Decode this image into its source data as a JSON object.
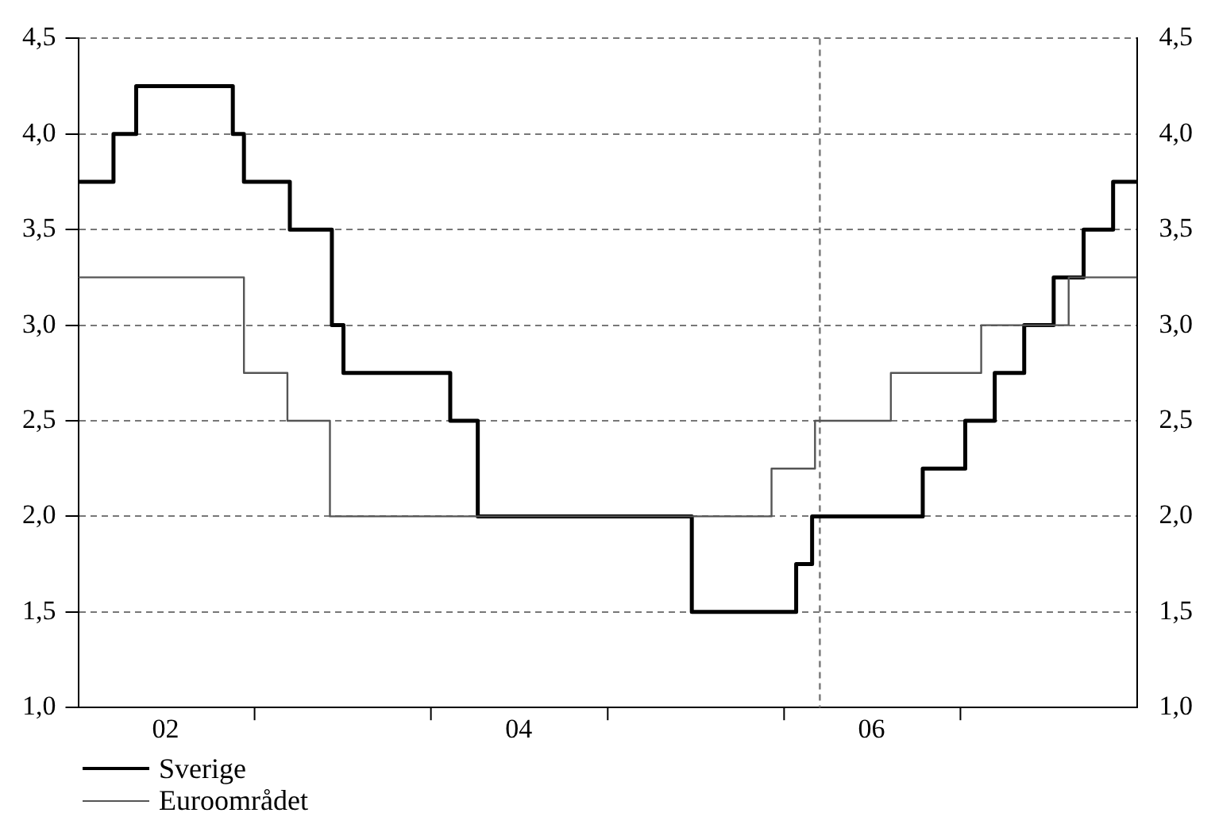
{
  "chart_data": {
    "type": "step",
    "series": [
      {
        "name": "Sverige",
        "color": "#000000",
        "x": [
          "2002-01-01",
          "2002-03-15",
          "2002-05-01",
          "2002-11-17",
          "2002-12-10",
          "2003-03-15",
          "2003-06-10",
          "2003-07-04",
          "2004-02-10",
          "2004-04-07",
          "2005-06-24",
          "2006-01-26",
          "2006-02-28",
          "2006-10-15",
          "2007-01-11",
          "2007-03-13",
          "2007-05-13",
          "2007-07-13",
          "2007-09-13",
          "2007-11-13",
          "2008-01-01"
        ],
        "values": [
          3.75,
          4.0,
          4.25,
          4.0,
          3.75,
          3.5,
          3.0,
          2.75,
          2.5,
          2.0,
          1.5,
          1.75,
          2.0,
          2.25,
          2.5,
          2.75,
          3.0,
          3.25,
          3.5,
          3.75,
          3.75
        ]
      },
      {
        "name": "Euroområdet",
        "color": "#555555",
        "x": [
          "2002-01-01",
          "2002-12-10",
          "2003-03-10",
          "2003-06-06",
          "2005-12-06",
          "2006-03-06",
          "2006-08-10",
          "2007-02-13",
          "2007-08-13",
          "2008-01-01"
        ],
        "values": [
          3.25,
          2.75,
          2.5,
          2.0,
          2.25,
          2.5,
          2.75,
          3.0,
          3.25,
          3.25
        ]
      }
    ],
    "xlim": [
      "2002-01-01",
      "2008-01-01"
    ],
    "xticks": [
      {
        "value": "2002-07-01",
        "label": "02"
      },
      {
        "value": "2003-01-01",
        "label": null
      },
      {
        "value": "2004-01-01",
        "label": null
      },
      {
        "value": "2004-07-01",
        "label": "04"
      },
      {
        "value": "2005-01-01",
        "label": null
      },
      {
        "value": "2006-01-01",
        "label": null
      },
      {
        "value": "2006-07-01",
        "label": "06"
      },
      {
        "value": "2007-01-01",
        "label": null
      }
    ],
    "ylim": [
      1.0,
      4.5
    ],
    "yticks": [
      {
        "value": 1.0,
        "label": "1,0"
      },
      {
        "value": 1.5,
        "label": "1,5"
      },
      {
        "value": 2.0,
        "label": "2,0"
      },
      {
        "value": 2.5,
        "label": "2,5"
      },
      {
        "value": 3.0,
        "label": "3,0"
      },
      {
        "value": 3.5,
        "label": "3,5"
      },
      {
        "value": 4.0,
        "label": "4,0"
      },
      {
        "value": 4.5,
        "label": "4,5"
      }
    ],
    "y2lim": [
      1.0,
      4.5
    ],
    "y2ticks": [
      {
        "value": 1.0,
        "label": "1,0"
      },
      {
        "value": 1.5,
        "label": "1,5"
      },
      {
        "value": 2.0,
        "label": "2,0"
      },
      {
        "value": 2.5,
        "label": "2,5"
      },
      {
        "value": 3.0,
        "label": "3,0"
      },
      {
        "value": 3.5,
        "label": "3,5"
      },
      {
        "value": 4.0,
        "label": "4,0"
      },
      {
        "value": 4.5,
        "label": "4,5"
      }
    ],
    "grid": "y",
    "legend": "bottom left",
    "ref_lines": [
      {
        "axis": "x",
        "value": "2006-03-16",
        "color": "#777777",
        "line_style": "dashed"
      }
    ]
  }
}
